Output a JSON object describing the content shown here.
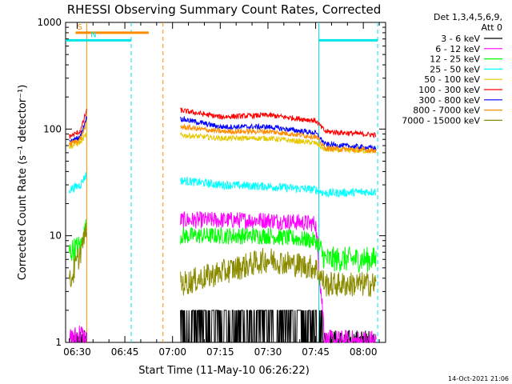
{
  "chart_data": {
    "type": "line",
    "title": "RHESSI Observing Summary Count Rates, Corrected",
    "xlabel": "Start Time (11-May-10 06:26:22)",
    "ylabel": "Corrected Count Rate (s⁻¹ detector⁻¹)",
    "y_scale": "log",
    "ylim": [
      1,
      1000
    ],
    "xlim": [
      "06:26:22",
      "08:07:00"
    ],
    "x_ticks": [
      "06:30",
      "06:45",
      "07:00",
      "07:15",
      "07:30",
      "07:45",
      "08:00"
    ],
    "y_ticks": [
      "1",
      "10",
      "100",
      "1000"
    ],
    "grid": false,
    "legend_position": "right",
    "legend_header": [
      "Det 1,3,4,5,6,9,",
      "Att 0"
    ],
    "footer_timestamp": "14-Oct-2021 21:06",
    "flags": [
      {
        "label": "S",
        "color": "#ff8c00",
        "start": "06:29:30",
        "end": "06:52:30",
        "level": 800
      },
      {
        "label": "N",
        "color": "#00e5e5",
        "start": "06:26:22",
        "end": "06:47:00",
        "level": 680
      },
      {
        "label": "",
        "color": "#00e5e5",
        "start": "07:46:00",
        "end": "08:04:30",
        "level": 680
      }
    ],
    "vlines": [
      {
        "time": "06:33:00",
        "color": "#ff8c00",
        "style": "solid"
      },
      {
        "time": "06:47:00",
        "color": "#00e5e5",
        "style": "dashed"
      },
      {
        "time": "06:57:00",
        "color": "#ff8c00",
        "style": "dashed"
      },
      {
        "time": "07:46:00",
        "color": "#00e5e5",
        "style": "solid"
      },
      {
        "time": "08:04:30",
        "color": "#00e5e5",
        "style": "dashed"
      }
    ],
    "segments": [
      [
        "06:27:30",
        "06:33:00"
      ],
      [
        "07:02:30",
        "08:04:00"
      ]
    ],
    "series": [
      {
        "name": "3 - 6 keV",
        "color": "#000000",
        "x": [
          "06:27:30",
          "06:31:00",
          "06:33:00",
          "07:02:30",
          "07:15:00",
          "07:30:00",
          "07:45:00",
          "07:48:00",
          "08:04:00"
        ],
        "y": [
          1.0,
          1.0,
          1.0,
          1.8,
          1.8,
          1.8,
          1.8,
          1.0,
          1.0
        ]
      },
      {
        "name": "6 - 12 keV",
        "color": "#ff00ff",
        "x": [
          "06:27:30",
          "06:31:00",
          "06:33:00",
          "07:02:30",
          "07:15:00",
          "07:30:00",
          "07:45:00",
          "07:48:00",
          "08:04:00"
        ],
        "y": [
          1.0,
          1.2,
          1.0,
          14,
          14,
          14,
          13,
          1.0,
          1.0
        ]
      },
      {
        "name": "12 - 25 keV",
        "color": "#00ff00",
        "x": [
          "06:27:30",
          "06:31:00",
          "06:33:00",
          "07:02:30",
          "07:15:00",
          "07:30:00",
          "07:45:00",
          "07:48:00",
          "08:04:00"
        ],
        "y": [
          7,
          8,
          13,
          10,
          10,
          10,
          9,
          6,
          6
        ]
      },
      {
        "name": "25 - 50 keV",
        "color": "#00ffff",
        "x": [
          "06:27:30",
          "06:31:00",
          "06:33:00",
          "07:02:30",
          "07:15:00",
          "07:30:00",
          "07:45:00",
          "07:48:00",
          "08:04:00"
        ],
        "y": [
          27,
          30,
          38,
          33,
          30,
          29,
          27,
          25,
          26
        ]
      },
      {
        "name": "50 - 100 keV",
        "color": "#e6c800",
        "x": [
          "06:27:30",
          "06:31:00",
          "06:33:00",
          "07:02:30",
          "07:15:00",
          "07:30:00",
          "07:45:00",
          "07:48:00",
          "08:04:00"
        ],
        "y": [
          68,
          75,
          90,
          88,
          82,
          82,
          74,
          64,
          62
        ]
      },
      {
        "name": "100 - 300 keV",
        "color": "#ff0000",
        "x": [
          "06:27:30",
          "06:31:00",
          "06:33:00",
          "07:02:30",
          "07:15:00",
          "07:30:00",
          "07:45:00",
          "07:48:00",
          "08:04:00"
        ],
        "y": [
          85,
          95,
          150,
          150,
          130,
          135,
          120,
          95,
          88
        ]
      },
      {
        "name": "300 - 800 keV",
        "color": "#0000ff",
        "x": [
          "06:27:30",
          "06:31:00",
          "06:33:00",
          "07:02:30",
          "07:15:00",
          "07:30:00",
          "07:45:00",
          "07:48:00",
          "08:04:00"
        ],
        "y": [
          75,
          85,
          130,
          125,
          105,
          105,
          92,
          72,
          66
        ]
      },
      {
        "name": "800 - 7000 keV",
        "color": "#ff8c00",
        "x": [
          "06:27:30",
          "06:31:00",
          "06:33:00",
          "07:02:30",
          "07:15:00",
          "07:30:00",
          "07:45:00",
          "07:48:00",
          "08:04:00"
        ],
        "y": [
          72,
          80,
          115,
          105,
          95,
          95,
          85,
          66,
          63
        ]
      },
      {
        "name": "7000 - 15000 keV",
        "color": "#8b8b00",
        "x": [
          "06:27:30",
          "06:31:00",
          "06:33:00",
          "07:02:30",
          "07:15:00",
          "07:30:00",
          "07:45:00",
          "07:48:00",
          "08:04:00"
        ],
        "y": [
          3.5,
          7,
          12,
          3.5,
          4.5,
          6,
          5,
          3.5,
          3.5
        ]
      }
    ]
  }
}
